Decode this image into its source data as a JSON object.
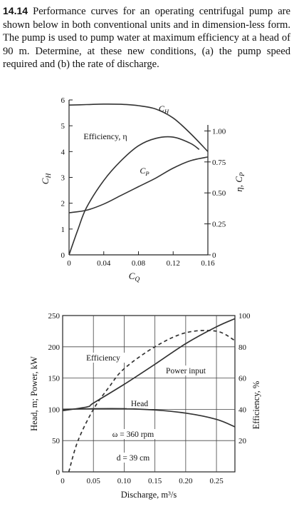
{
  "problem": {
    "number": "14.14",
    "text": "Performance curves for an operating centrifugal pump are shown below in both conventional units and in dimension-less form. The pump is used to pump water at maximum efficiency at a head of 90 m. Determine, at these new conditions, (a) the pump speed required and (b) the rate of discharge."
  },
  "chart_data": [
    {
      "type": "line",
      "xlabel": "C",
      "xlabel_sub": "Q",
      "ylabel_left": "C",
      "ylabel_left_sub": "H",
      "ylabel_right": "η, C",
      "ylabel_right_sub": "P",
      "xlim": [
        0,
        0.16
      ],
      "ylim_left": [
        0,
        6
      ],
      "ylim_right": [
        0,
        1.25
      ],
      "x_ticks": [
        "0",
        "0.04",
        "0.08",
        "0.12",
        "0.16"
      ],
      "y_left_ticks": [
        "0",
        "1",
        "2",
        "3",
        "4",
        "5",
        "6"
      ],
      "y_right_ticks": [
        "0",
        "0.25",
        "0.50",
        "0.75",
        "1.00"
      ],
      "grid": false,
      "series": [
        {
          "name": "C",
          "sub": "H",
          "axis": "left",
          "x": [
            0,
            0.02,
            0.04,
            0.06,
            0.08,
            0.1,
            0.12,
            0.14,
            0.16
          ],
          "y": [
            5.8,
            5.82,
            5.84,
            5.83,
            5.78,
            5.65,
            5.3,
            4.7,
            4.0
          ]
        },
        {
          "name": "Efficiency, η",
          "axis": "right",
          "x": [
            0,
            0.01,
            0.02,
            0.04,
            0.06,
            0.08,
            0.1,
            0.12,
            0.14,
            0.15
          ],
          "y": [
            0,
            0.2,
            0.38,
            0.6,
            0.76,
            0.88,
            0.94,
            0.95,
            0.9,
            0.85
          ]
        },
        {
          "name": "C",
          "sub": "P",
          "axis": "right",
          "x": [
            0,
            0.02,
            0.04,
            0.06,
            0.08,
            0.1,
            0.12,
            0.14,
            0.16
          ],
          "y": [
            0.34,
            0.36,
            0.41,
            0.48,
            0.55,
            0.62,
            0.7,
            0.76,
            0.79
          ]
        }
      ],
      "annotations": [
        {
          "text": "C",
          "sub": "H"
        },
        {
          "text": "Efficiency, η"
        },
        {
          "text": "C",
          "sub": "P"
        }
      ]
    },
    {
      "type": "line",
      "xlabel": "Discharge, m³/s",
      "ylabel_left": "Head, m; Power, kW",
      "ylabel_right": "Efficiency, %",
      "xlim": [
        0,
        0.28
      ],
      "ylim_left": [
        0,
        250
      ],
      "ylim_right": [
        0,
        100
      ],
      "x_ticks": [
        "0",
        "0.05",
        "0.10",
        "0.15",
        "0.20",
        "0.25"
      ],
      "y_left_ticks": [
        "0",
        "50",
        "100",
        "150",
        "200",
        "250"
      ],
      "y_right_ticks": [
        "20",
        "40",
        "60",
        "80",
        "100"
      ],
      "grid": true,
      "series": [
        {
          "name": "Head",
          "axis": "left",
          "x": [
            0,
            0.05,
            0.1,
            0.15,
            0.2,
            0.25,
            0.28
          ],
          "y": [
            100,
            101,
            101,
            99,
            94,
            84,
            72
          ]
        },
        {
          "name": "Power input",
          "axis": "left",
          "x": [
            0,
            0.04,
            0.05,
            0.1,
            0.15,
            0.2,
            0.25,
            0.28
          ],
          "y": [
            98,
            104,
            110,
            140,
            172,
            205,
            232,
            245
          ]
        },
        {
          "name": "Efficiency",
          "axis": "right",
          "style": "dashed",
          "x": [
            0.01,
            0.025,
            0.05,
            0.075,
            0.1,
            0.15,
            0.2,
            0.25,
            0.28
          ],
          "y": [
            0,
            20,
            40,
            54,
            66,
            80,
            89,
            90,
            84
          ]
        }
      ],
      "annotations": [
        {
          "text": "Efficiency"
        },
        {
          "text": "Power input"
        },
        {
          "text": "Head"
        },
        {
          "text": "ω = 360 rpm"
        },
        {
          "text": "d = 39 cm"
        }
      ]
    }
  ]
}
